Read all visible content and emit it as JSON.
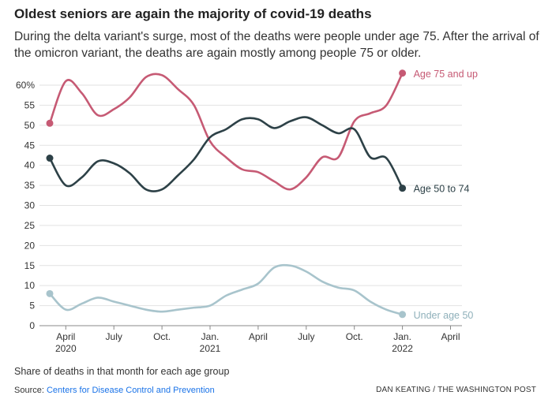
{
  "title": "Oldest seniors are again the majority of covid-19 deaths",
  "subtitle": "During the delta variant's surge, most of the deaths were people under age 75. After the arrival of the omicron variant, the deaths are again mostly among people 75 or older.",
  "note": "Share of deaths in that month for each age group",
  "source_label": "Source:",
  "source_link": "Centers for Disease Control and Prevention",
  "credit": "DAN KEATING / THE WASHINGTON POST",
  "chart_data": {
    "type": "line",
    "title": "Oldest seniors are again the majority of covid-19 deaths",
    "xlabel": "",
    "ylabel": "Share of deaths in that month for each age group",
    "ylim": [
      0,
      60
    ],
    "xlim": [
      0,
      25
    ],
    "x_unit": "months since March 2020",
    "y_ticks": [
      {
        "value": 0,
        "label": "0"
      },
      {
        "value": 5,
        "label": "5"
      },
      {
        "value": 10,
        "label": "10"
      },
      {
        "value": 15,
        "label": "15"
      },
      {
        "value": 20,
        "label": "20"
      },
      {
        "value": 25,
        "label": "25"
      },
      {
        "value": 30,
        "label": "30"
      },
      {
        "value": 35,
        "label": "35"
      },
      {
        "value": 40,
        "label": "40"
      },
      {
        "value": 45,
        "label": "45"
      },
      {
        "value": 50,
        "label": "50"
      },
      {
        "value": 55,
        "label": "55"
      },
      {
        "value": 60,
        "label": "60%"
      }
    ],
    "x_ticks": [
      {
        "x": 1,
        "label": "April",
        "sub": "2020"
      },
      {
        "x": 4,
        "label": "July",
        "sub": ""
      },
      {
        "x": 7,
        "label": "Oct.",
        "sub": ""
      },
      {
        "x": 10,
        "label": "Jan.",
        "sub": "2021"
      },
      {
        "x": 13,
        "label": "April",
        "sub": ""
      },
      {
        "x": 16,
        "label": "July",
        "sub": ""
      },
      {
        "x": 19,
        "label": "Oct.",
        "sub": ""
      },
      {
        "x": 22,
        "label": "Jan.",
        "sub": "2022"
      },
      {
        "x": 25,
        "label": "April",
        "sub": ""
      }
    ],
    "x": [
      0,
      1,
      2,
      3,
      4,
      5,
      6,
      7,
      8,
      9,
      10,
      11,
      12,
      13,
      14,
      15,
      16,
      17,
      18,
      19,
      20,
      21,
      22,
      23,
      24,
      25
    ],
    "series": [
      {
        "name": "Age 75 and up",
        "color": "#c65a74",
        "values": [
          50.5,
          61,
          58,
          52.5,
          54,
          57,
          62,
          62.5,
          59,
          55,
          46,
          42,
          39,
          38.3,
          36,
          34,
          37,
          42,
          42,
          51,
          53,
          55,
          63,
          null,
          null,
          null
        ]
      },
      {
        "name": "Age 50 to 74",
        "color": "#2d4147",
        "values": [
          41.8,
          35,
          37,
          41,
          40.5,
          38,
          34,
          34,
          37.5,
          41.5,
          47,
          49,
          51.5,
          51.5,
          49.3,
          51,
          52,
          50,
          48,
          49,
          42,
          41.8,
          34.3,
          null,
          null,
          null
        ]
      },
      {
        "name": "Under age 50",
        "color": "#a8c4cc",
        "values": [
          8,
          4,
          5.5,
          7,
          6,
          5,
          4,
          3.5,
          4,
          4.5,
          5,
          7.5,
          9,
          10.5,
          14.5,
          15,
          13.5,
          11,
          9.5,
          8.8,
          6,
          4,
          2.8,
          null,
          null,
          null
        ]
      }
    ],
    "labels": [
      {
        "series": 0,
        "text": "Age 75 and up"
      },
      {
        "series": 1,
        "text": "Age 50 to 74"
      },
      {
        "series": 2,
        "text": "Under age 50"
      }
    ]
  }
}
